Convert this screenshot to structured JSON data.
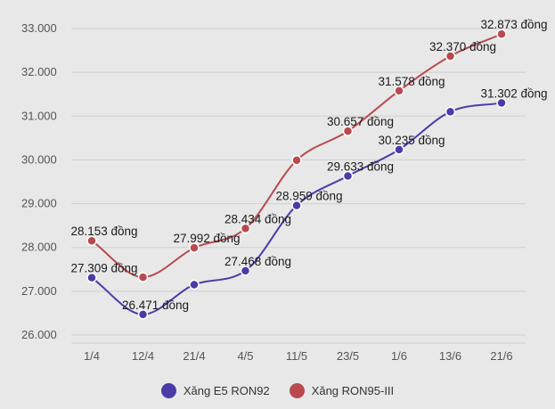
{
  "chart_data": {
    "type": "line",
    "title": "",
    "xlabel": "",
    "ylabel": "",
    "categories": [
      "1/4",
      "12/4",
      "21/4",
      "4/5",
      "11/5",
      "23/5",
      "1/6",
      "13/6",
      "21/6"
    ],
    "ylim": [
      26000,
      33000
    ],
    "yticks": [
      26000,
      27000,
      28000,
      29000,
      30000,
      31000,
      32000,
      33000
    ],
    "ytick_labels": [
      "26.000",
      "27.000",
      "28.000",
      "29.000",
      "30.000",
      "31.000",
      "32.000",
      "33.000"
    ],
    "grid": true,
    "legend_position": "bottom-center",
    "series": [
      {
        "name": "Xăng E5 RON92",
        "color": "#4b3ba8",
        "values": [
          27309,
          26471,
          27150,
          27468,
          28959,
          29633,
          30235,
          31100,
          31302
        ],
        "data_labels": [
          "27.309 đồng",
          "26.471 đồng",
          "",
          "27.468 đồng",
          "28.959 đồng",
          "29.633 đồng",
          "30.235 đồng",
          "",
          "31.302 đồng"
        ]
      },
      {
        "name": "Xăng RON95-III",
        "color": "#b84a4e",
        "values": [
          28153,
          27320,
          27992,
          28434,
          29990,
          30657,
          31578,
          32370,
          32873
        ],
        "data_labels": [
          "28.153 đồng",
          "",
          "27.992 đồng",
          "28.434 đồng",
          "",
          "30.657 đồng",
          "31.578 đồng",
          "32.370 đồng",
          "32.873 đồng"
        ]
      }
    ]
  }
}
